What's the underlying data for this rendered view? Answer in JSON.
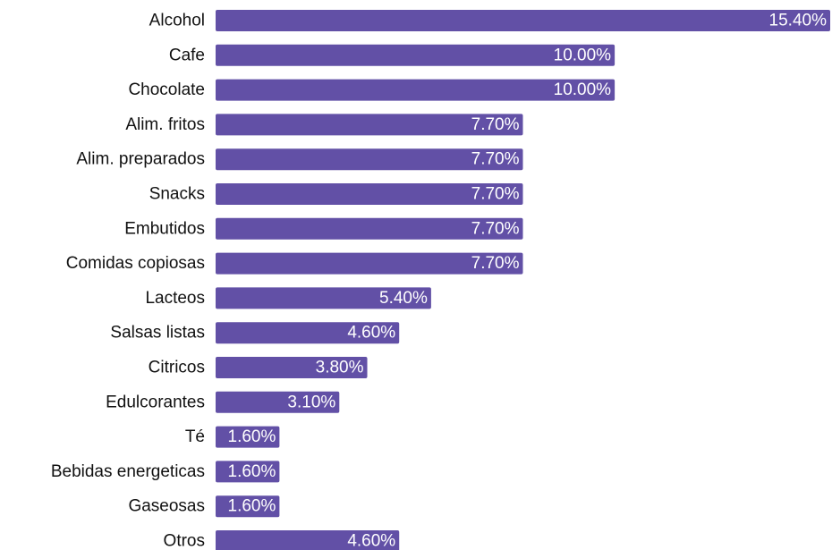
{
  "chart_data": {
    "type": "bar",
    "orientation": "horizontal",
    "title": "",
    "xlabel": "",
    "ylabel": "",
    "xlim": [
      0,
      15.4
    ],
    "grid": false,
    "legend": "none",
    "bar_color": "#6250a6",
    "categories": [
      "Alcohol",
      "Cafe",
      "Chocolate",
      "Alim. fritos",
      "Alim. preparados",
      "Snacks",
      "Embutidos",
      "Comidas copiosas",
      "Lacteos",
      "Salsas listas",
      "Citricos",
      "Edulcorantes",
      "Té",
      "Bebidas energeticas",
      "Gaseosas",
      "Otros"
    ],
    "values": [
      15.4,
      10.0,
      10.0,
      7.7,
      7.7,
      7.7,
      7.7,
      7.7,
      5.4,
      4.6,
      3.8,
      3.1,
      1.6,
      1.6,
      1.6,
      4.6
    ],
    "value_labels": [
      "15.40%",
      "10.00%",
      "10.00%",
      "7.70%",
      "7.70%",
      "7.70%",
      "7.70%",
      "7.70%",
      "5.40%",
      "4.60%",
      "3.80%",
      "3.10%",
      "1.60%",
      "1.60%",
      "1.60%",
      "4.60%"
    ]
  }
}
